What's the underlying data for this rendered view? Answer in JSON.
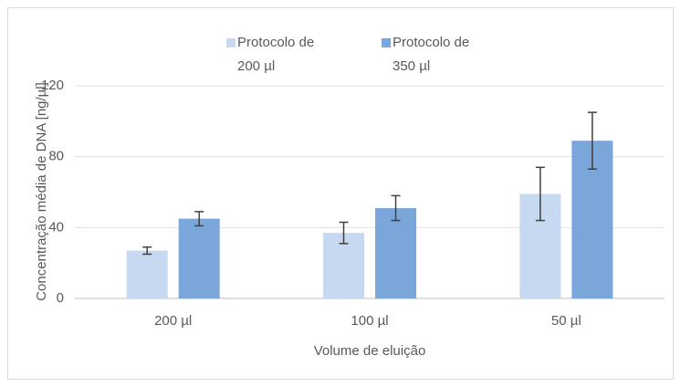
{
  "chart_data": {
    "type": "bar",
    "x_label": "Volume de eluição",
    "y_label": "Concentração média de DNA [ng/µl]",
    "categories": [
      "200 µl",
      "100 µl",
      "50 µl"
    ],
    "series": [
      {
        "name": "Protocolo de 200 µl",
        "color": "#c6d9f0",
        "values": [
          27,
          37,
          59
        ],
        "errors": [
          2,
          6,
          15
        ]
      },
      {
        "name": "Protocolo de 350 µl",
        "color": "#7ba6da",
        "values": [
          45,
          51,
          89
        ],
        "errors": [
          4,
          7,
          16
        ]
      }
    ],
    "ylim": [
      0,
      120
    ],
    "yticks": [
      0,
      40,
      80,
      120
    ],
    "grid": true
  }
}
